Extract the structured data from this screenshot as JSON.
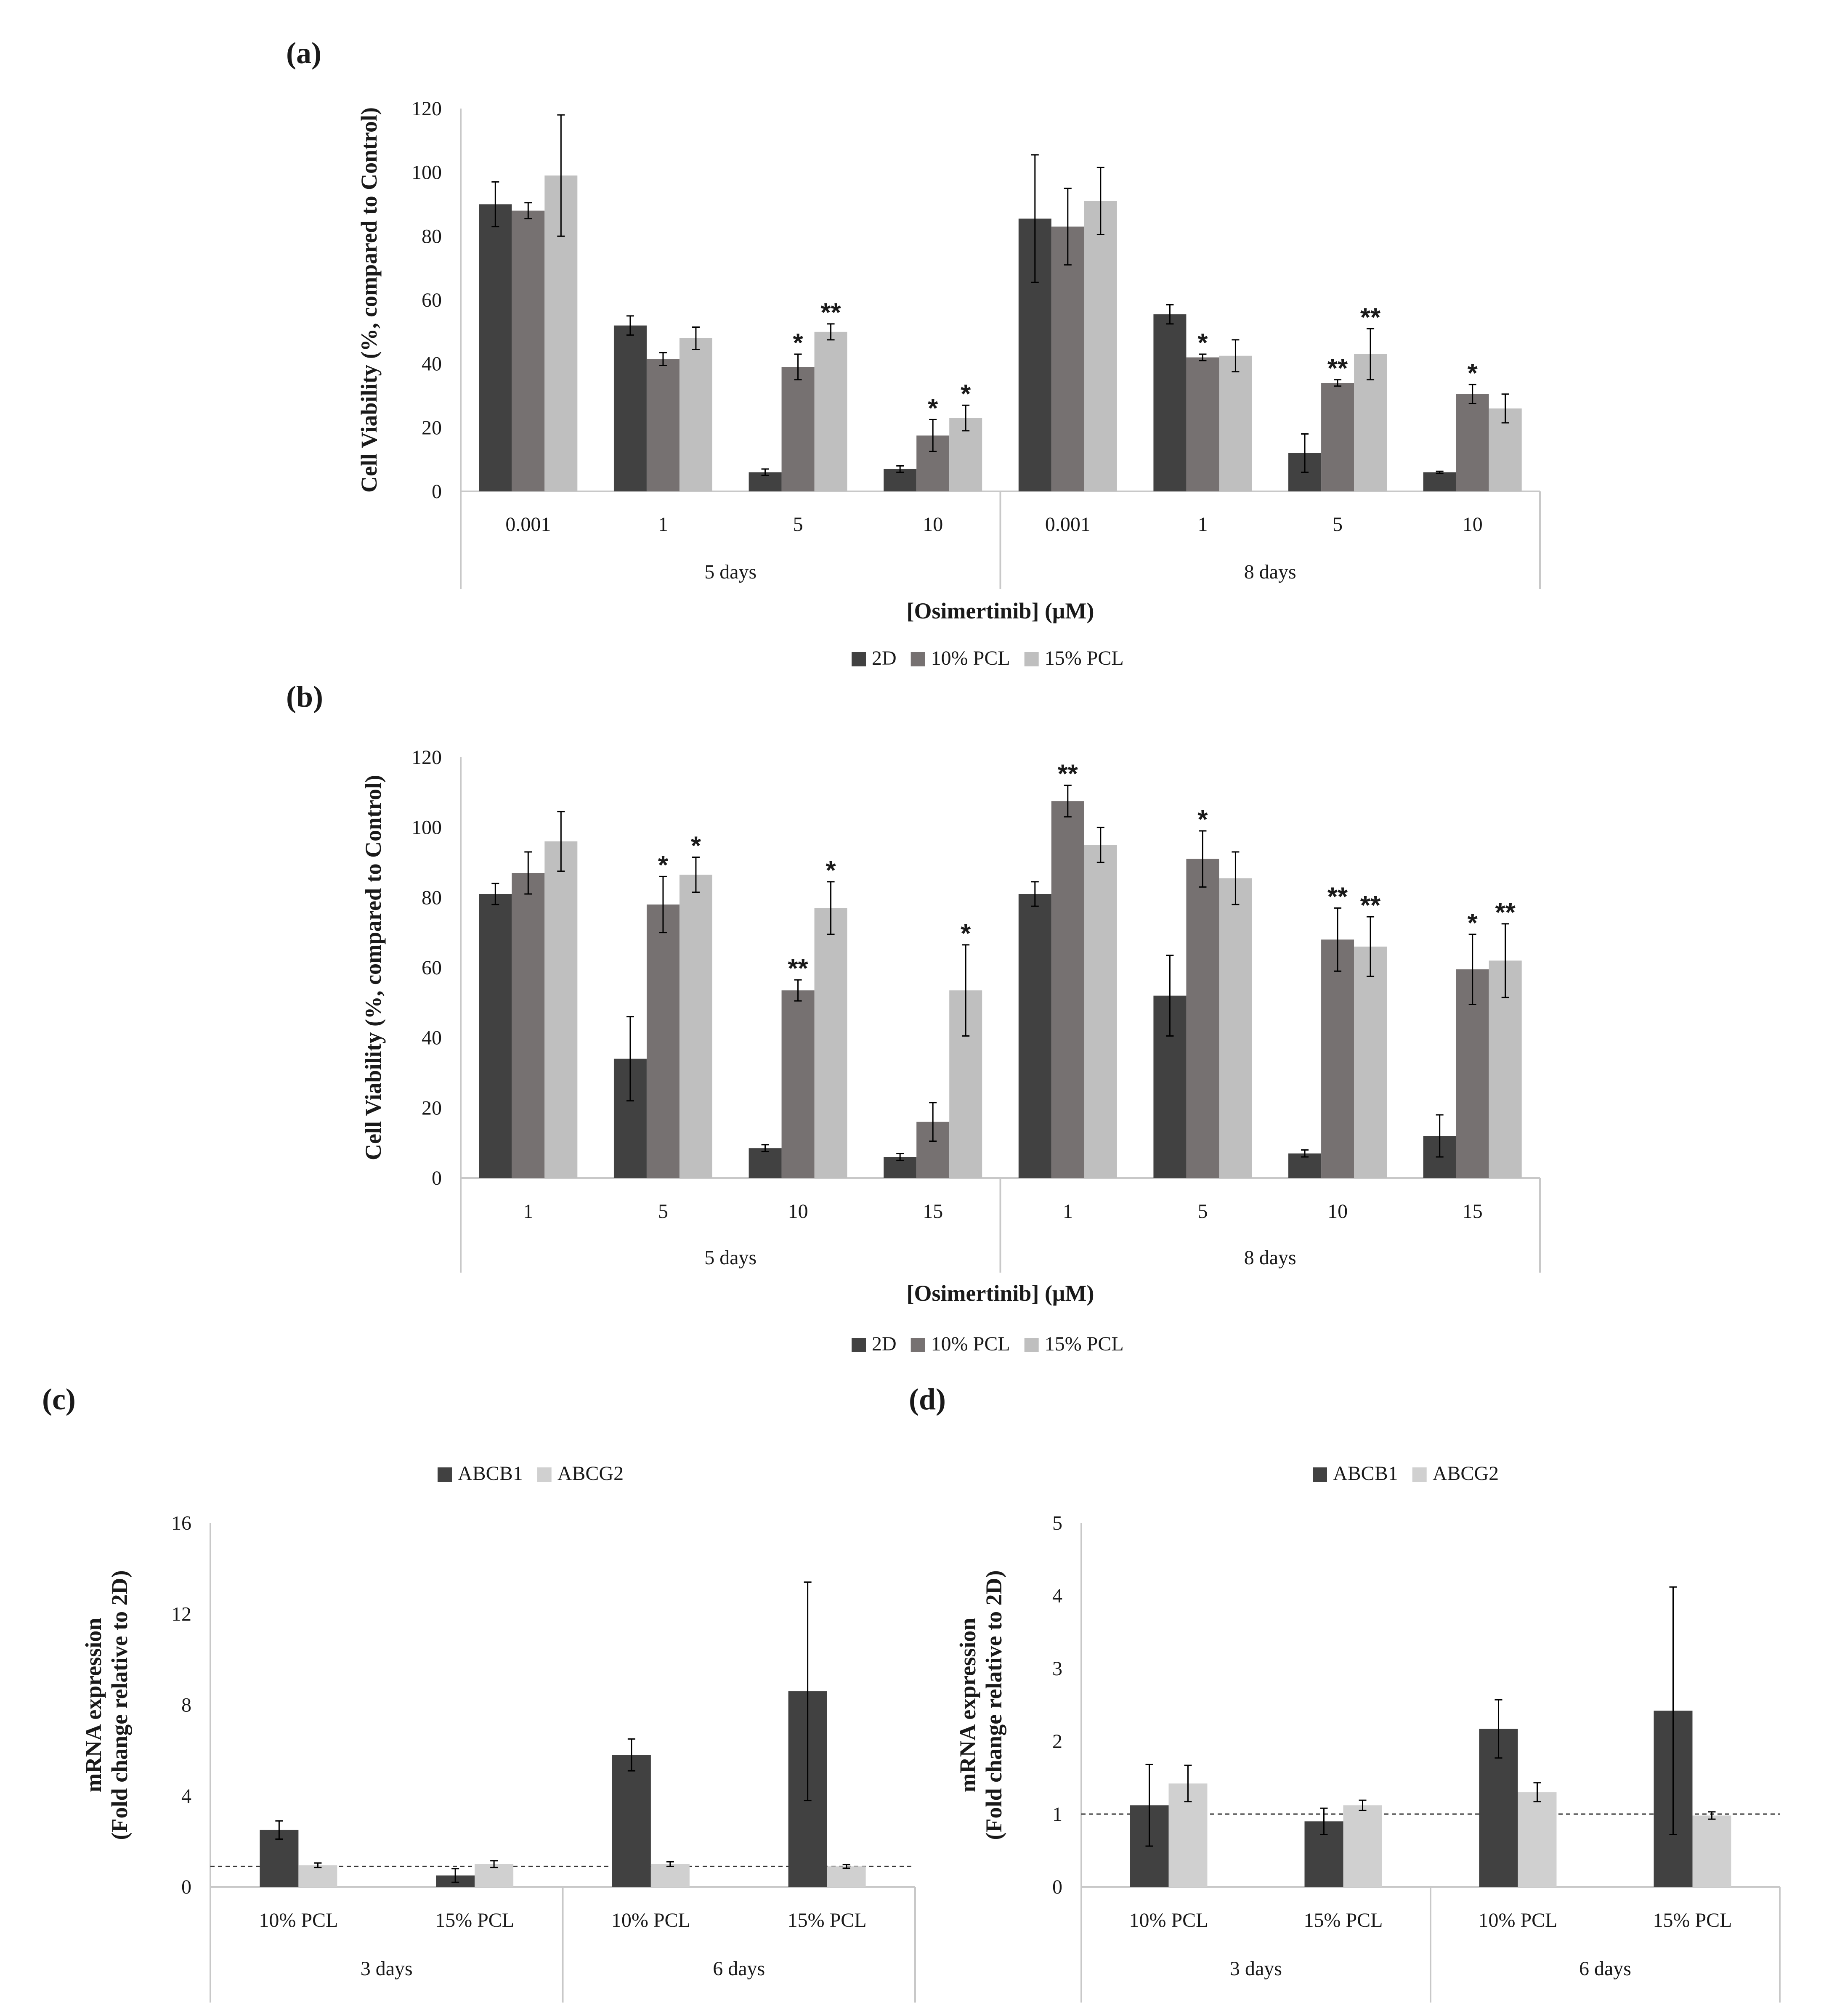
{
  "figure": {
    "labels": [
      "(a)",
      "(b)",
      "(c)",
      "(d)"
    ]
  },
  "colors": {
    "2D": "#414141",
    "10% PCL": "#767171",
    "15% PCL": "#bfbfbf",
    "ABCB1": "#414141",
    "ABCG2": "#d0d0d0",
    "axis": "#c8c8c8",
    "error": "#000000"
  },
  "chart_data": [
    {
      "id": "a",
      "label": "(a)",
      "type": "bar",
      "ylabel": "Cell Viability (%, compared to Control)",
      "xlabel": "[Osimertinib] (μM)",
      "ylim": [
        0,
        120
      ],
      "yticks": [
        0,
        20,
        40,
        60,
        80,
        100,
        120
      ],
      "legend_position": "bottom",
      "groups": [
        {
          "name": "5 days",
          "categories": [
            "0.001",
            "1",
            "5",
            "10"
          ]
        },
        {
          "name": "8 days",
          "categories": [
            "0.001",
            "1",
            "5",
            "10"
          ]
        }
      ],
      "series": [
        {
          "name": "2D",
          "values": [
            90,
            52,
            6,
            7,
            85.5,
            55.5,
            12,
            6
          ],
          "errors": [
            7,
            3,
            1,
            1,
            20,
            3,
            6,
            0.3
          ]
        },
        {
          "name": "10% PCL",
          "values": [
            88,
            41.5,
            39,
            17.5,
            83,
            42,
            34,
            30.5
          ],
          "errors": [
            2.5,
            2,
            4,
            5,
            12,
            1,
            1,
            3
          ]
        },
        {
          "name": "15% PCL",
          "values": [
            99,
            48,
            50,
            23,
            91,
            42.5,
            43,
            26
          ],
          "errors": [
            19,
            3.5,
            2.5,
            4,
            10.5,
            5,
            8,
            4.5
          ]
        }
      ],
      "annotations": [
        {
          "group": 0,
          "category": 2,
          "series": 1,
          "text": "*"
        },
        {
          "group": 0,
          "category": 2,
          "series": 2,
          "text": "**"
        },
        {
          "group": 0,
          "category": 3,
          "series": 1,
          "text": "*"
        },
        {
          "group": 0,
          "category": 3,
          "series": 2,
          "text": "*"
        },
        {
          "group": 1,
          "category": 1,
          "series": 1,
          "text": "*"
        },
        {
          "group": 1,
          "category": 2,
          "series": 1,
          "text": "**"
        },
        {
          "group": 1,
          "category": 2,
          "series": 2,
          "text": "**"
        },
        {
          "group": 1,
          "category": 3,
          "series": 1,
          "text": "*"
        }
      ]
    },
    {
      "id": "b",
      "label": "(b)",
      "type": "bar",
      "ylabel": "Cell Viability (%, compared to Control)",
      "xlabel": "[Osimertinib] (μM)",
      "ylim": [
        0,
        120
      ],
      "yticks": [
        0,
        20,
        40,
        60,
        80,
        100,
        120
      ],
      "legend_position": "bottom",
      "groups": [
        {
          "name": "5 days",
          "categories": [
            "1",
            "5",
            "10",
            "15"
          ]
        },
        {
          "name": "8 days",
          "categories": [
            "1",
            "5",
            "10",
            "15"
          ]
        }
      ],
      "series": [
        {
          "name": "2D",
          "values": [
            81,
            34,
            8.5,
            6,
            81,
            52,
            7,
            12
          ],
          "errors": [
            3,
            12,
            1,
            1,
            3.5,
            11.5,
            1,
            6
          ]
        },
        {
          "name": "10% PCL",
          "values": [
            87,
            78,
            53.5,
            16,
            107.5,
            91,
            68,
            59.5
          ],
          "errors": [
            6,
            8,
            3,
            5.5,
            4.5,
            8,
            9,
            10
          ]
        },
        {
          "name": "15% PCL",
          "values": [
            96,
            86.5,
            77,
            53.5,
            95,
            85.5,
            66,
            62
          ],
          "errors": [
            8.5,
            5,
            7.5,
            13,
            5,
            7.5,
            8.5,
            10.5
          ]
        }
      ],
      "annotations": [
        {
          "group": 0,
          "category": 1,
          "series": 1,
          "text": "*"
        },
        {
          "group": 0,
          "category": 1,
          "series": 2,
          "text": "*"
        },
        {
          "group": 0,
          "category": 2,
          "series": 1,
          "text": "**"
        },
        {
          "group": 0,
          "category": 2,
          "series": 2,
          "text": "*"
        },
        {
          "group": 0,
          "category": 3,
          "series": 2,
          "text": "*"
        },
        {
          "group": 1,
          "category": 0,
          "series": 1,
          "text": "**"
        },
        {
          "group": 1,
          "category": 1,
          "series": 1,
          "text": "*"
        },
        {
          "group": 1,
          "category": 2,
          "series": 1,
          "text": "**"
        },
        {
          "group": 1,
          "category": 2,
          "series": 2,
          "text": "**"
        },
        {
          "group": 1,
          "category": 3,
          "series": 1,
          "text": "*"
        },
        {
          "group": 1,
          "category": 3,
          "series": 2,
          "text": "**"
        }
      ]
    },
    {
      "id": "c",
      "label": "(c)",
      "type": "bar",
      "ylabel": [
        "mRNA expression",
        "(Fold change relative to 2D)"
      ],
      "xlabel": "",
      "ylim": [
        0,
        16
      ],
      "yticks": [
        0,
        4,
        8,
        12,
        16
      ],
      "legend_position": "top",
      "reference_line": 0.9,
      "groups": [
        {
          "name": "3 days",
          "categories": [
            "10% PCL",
            "15% PCL"
          ]
        },
        {
          "name": "6 days",
          "categories": [
            "10% PCL",
            "15% PCL"
          ]
        }
      ],
      "series": [
        {
          "name": "ABCB1",
          "values": [
            2.5,
            0.5,
            5.8,
            8.6
          ],
          "errors": [
            0.4,
            0.3,
            0.7,
            4.8
          ]
        },
        {
          "name": "ABCG2",
          "values": [
            0.95,
            1.0,
            1.0,
            0.9
          ],
          "errors": [
            0.1,
            0.15,
            0.1,
            0.08
          ]
        }
      ],
      "annotations": []
    },
    {
      "id": "d",
      "label": "(d)",
      "type": "bar",
      "ylabel": [
        "mRNA expression",
        "(Fold change relative to 2D)"
      ],
      "xlabel": "",
      "ylim": [
        0,
        5
      ],
      "yticks": [
        0,
        1,
        2,
        3,
        4,
        5
      ],
      "legend_position": "top",
      "reference_line": 1.0,
      "groups": [
        {
          "name": "3 days",
          "categories": [
            "10% PCL",
            "15% PCL"
          ]
        },
        {
          "name": "6 days",
          "categories": [
            "10% PCL",
            "15% PCL"
          ]
        }
      ],
      "series": [
        {
          "name": "ABCB1",
          "values": [
            1.12,
            0.9,
            2.17,
            2.42
          ],
          "errors": [
            0.56,
            0.18,
            0.4,
            1.7
          ]
        },
        {
          "name": "ABCG2",
          "values": [
            1.42,
            1.12,
            1.3,
            0.98
          ],
          "errors": [
            0.25,
            0.07,
            0.13,
            0.05
          ]
        }
      ],
      "annotations": []
    }
  ]
}
